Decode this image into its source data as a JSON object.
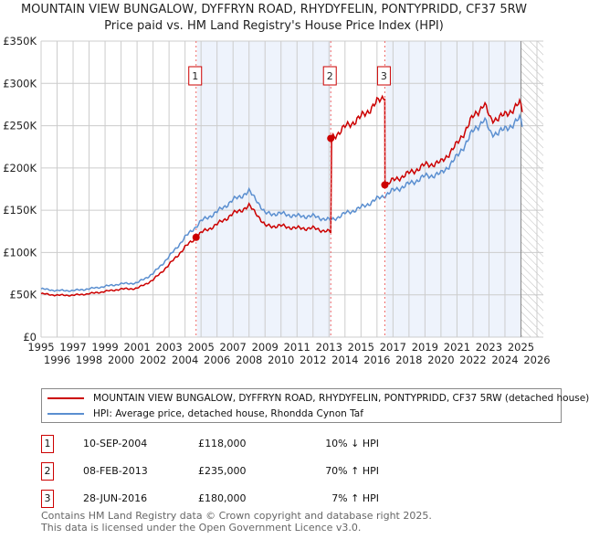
{
  "chart_data": {
    "type": "line",
    "title": "MOUNTAIN VIEW BUNGALOW, DYFFRYN ROAD, RHYDYFELIN, PONTYPRIDD, CF37 5RW",
    "subtitle": "Price paid vs. HM Land Registry's House Price Index (HPI)",
    "xlim": [
      1995,
      2026
    ],
    "ylim": [
      0,
      350000
    ],
    "y_ticks": [
      {
        "v": 0,
        "label": "£0"
      },
      {
        "v": 50000,
        "label": "£50K"
      },
      {
        "v": 100000,
        "label": "£100K"
      },
      {
        "v": 150000,
        "label": "£150K"
      },
      {
        "v": 200000,
        "label": "£200K"
      },
      {
        "v": 250000,
        "label": "£250K"
      },
      {
        "v": 300000,
        "label": "£300K"
      },
      {
        "v": 350000,
        "label": "£350K"
      }
    ],
    "x_ticks": [
      "1995",
      "1996",
      "1997",
      "1998",
      "1999",
      "2000",
      "2001",
      "2002",
      "2003",
      "2004",
      "2005",
      "2006",
      "2007",
      "2008",
      "2009",
      "2010",
      "2011",
      "2012",
      "2013",
      "2014",
      "2015",
      "2016",
      "2017",
      "2018",
      "2019",
      "2020",
      "2021",
      "2022",
      "2023",
      "2024",
      "2025",
      "2026"
    ],
    "grid": true,
    "forecast_start": 2025.0,
    "series": [
      {
        "name": "MOUNTAIN VIEW BUNGALOW, DYFFRYN ROAD, RHYDYFELIN, PONTYPRIDD, CF37 5RW (detached house)",
        "color": "#cc0000",
        "ratio_segments": [
          {
            "from": 1995,
            "ratio": 0.9
          },
          {
            "from": 2004.69,
            "ratio": 0.9
          },
          {
            "from": 2013.11,
            "ratio": 1.7
          },
          {
            "from": 2016.49,
            "ratio": 1.07
          }
        ]
      },
      {
        "name": "HPI: Average price, detached house, Rhondda Cynon Taf",
        "color": "#5b8fd0",
        "points": [
          [
            1995,
            57000
          ],
          [
            1996,
            55000
          ],
          [
            1997,
            55000
          ],
          [
            1998,
            57000
          ],
          [
            1999,
            60000
          ],
          [
            2000,
            63000
          ],
          [
            2001,
            64000
          ],
          [
            2002,
            75000
          ],
          [
            2003,
            95000
          ],
          [
            2004,
            118000
          ],
          [
            2004.69,
            131000
          ],
          [
            2005,
            137000
          ],
          [
            2006,
            148000
          ],
          [
            2007,
            162000
          ],
          [
            2008,
            172000
          ],
          [
            2008.5,
            162000
          ],
          [
            2009,
            146000
          ],
          [
            2010,
            146000
          ],
          [
            2011,
            143000
          ],
          [
            2012,
            143000
          ],
          [
            2013.11,
            138000
          ],
          [
            2014,
            146000
          ],
          [
            2015,
            153000
          ],
          [
            2016.49,
            168000
          ],
          [
            2017,
            173000
          ],
          [
            2018,
            181000
          ],
          [
            2019,
            190000
          ],
          [
            2020,
            193000
          ],
          [
            2021,
            213000
          ],
          [
            2022,
            243000
          ],
          [
            2022.7,
            258000
          ],
          [
            2023.1,
            240000
          ],
          [
            2024,
            245000
          ],
          [
            2024.9,
            258000
          ],
          [
            2025.1,
            250000
          ]
        ]
      }
    ],
    "sales": [
      {
        "id": "1",
        "x": 2004.69,
        "price": 118000,
        "date": "10-SEP-2004",
        "price_label": "£118,000",
        "hpi": "10% ↓ HPI"
      },
      {
        "id": "2",
        "x": 2013.11,
        "price": 235000,
        "date": "08-FEB-2013",
        "price_label": "£235,000",
        "hpi": "70% ↑ HPI"
      },
      {
        "id": "3",
        "x": 2016.49,
        "price": 180000,
        "date": "28-JUN-2016",
        "price_label": "£180,000",
        "hpi": "7% ↑ HPI"
      }
    ]
  },
  "legend": {
    "red": "MOUNTAIN VIEW BUNGALOW, DYFFRYN ROAD, RHYDYFELIN, PONTYPRIDD, CF37 5RW (detached house)",
    "blue": "HPI: Average price, detached house, Rhondda Cynon Taf"
  },
  "footer": {
    "line1": "Contains HM Land Registry data © Crown copyright and database right 2025.",
    "line2": "This data is licensed under the Open Government Licence v3.0."
  }
}
